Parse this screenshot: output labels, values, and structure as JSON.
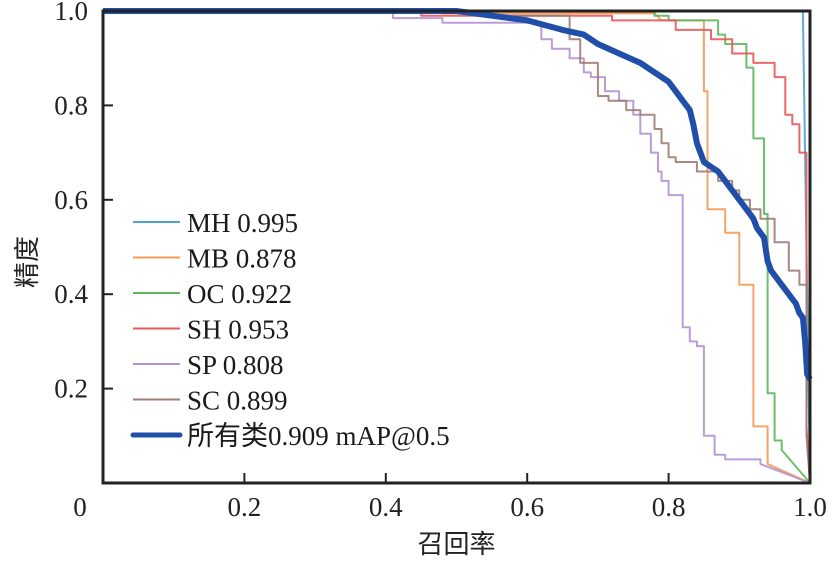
{
  "chart_data": {
    "type": "line",
    "title": "",
    "xlabel": "召回率",
    "ylabel": "精度",
    "xlim": [
      0,
      1.0
    ],
    "ylim": [
      0,
      1.0
    ],
    "grid": false,
    "legend_position": "bottom-left",
    "x_ticks": [
      {
        "value": 0,
        "label": "0"
      },
      {
        "value": 0.2,
        "label": "0.2"
      },
      {
        "value": 0.4,
        "label": "0.4"
      },
      {
        "value": 0.6,
        "label": "0.6"
      },
      {
        "value": 0.8,
        "label": "0.8"
      },
      {
        "value": 1.0,
        "label": "1.0"
      }
    ],
    "y_ticks": [
      {
        "value": 0.2,
        "label": "0.2"
      },
      {
        "value": 0.4,
        "label": "0.4"
      },
      {
        "value": 0.6,
        "label": "0.6"
      },
      {
        "value": 0.8,
        "label": "0.8"
      },
      {
        "value": 1.0,
        "label": "1.0"
      }
    ],
    "series": [
      {
        "name": "MH",
        "legend_label": "MH 0.995",
        "ap": 0.995,
        "color": "#4fa3d6",
        "bold": false,
        "points": [
          [
            0,
            1.0
          ],
          [
            0.99,
            1.0
          ],
          [
            1.0,
            0.0
          ]
        ]
      },
      {
        "name": "MB",
        "legend_label": "MB 0.878",
        "ap": 0.878,
        "color": "#f39a56",
        "bold": false,
        "points": [
          [
            0,
            1.0
          ],
          [
            0.48,
            1.0
          ],
          [
            0.48,
            0.995
          ],
          [
            0.78,
            0.995
          ],
          [
            0.79,
            0.98
          ],
          [
            0.85,
            0.98
          ],
          [
            0.85,
            0.83
          ],
          [
            0.855,
            0.83
          ],
          [
            0.855,
            0.58
          ],
          [
            0.88,
            0.58
          ],
          [
            0.88,
            0.53
          ],
          [
            0.9,
            0.53
          ],
          [
            0.9,
            0.42
          ],
          [
            0.92,
            0.42
          ],
          [
            0.92,
            0.12
          ],
          [
            0.94,
            0.12
          ],
          [
            0.94,
            0.04
          ],
          [
            1.0,
            0.0
          ]
        ]
      },
      {
        "name": "OC",
        "legend_label": "OC 0.922",
        "ap": 0.922,
        "color": "#5cb85c",
        "bold": false,
        "points": [
          [
            0,
            1.0
          ],
          [
            0.78,
            1.0
          ],
          [
            0.78,
            0.99
          ],
          [
            0.8,
            0.99
          ],
          [
            0.8,
            0.98
          ],
          [
            0.87,
            0.98
          ],
          [
            0.87,
            0.95
          ],
          [
            0.88,
            0.95
          ],
          [
            0.88,
            0.93
          ],
          [
            0.91,
            0.93
          ],
          [
            0.91,
            0.88
          ],
          [
            0.92,
            0.88
          ],
          [
            0.92,
            0.73
          ],
          [
            0.935,
            0.73
          ],
          [
            0.935,
            0.57
          ],
          [
            0.94,
            0.57
          ],
          [
            0.94,
            0.19
          ],
          [
            0.95,
            0.19
          ],
          [
            0.95,
            0.09
          ],
          [
            0.96,
            0.09
          ],
          [
            0.96,
            0.07
          ],
          [
            1.0,
            0.0
          ]
        ]
      },
      {
        "name": "SH",
        "legend_label": "SH 0.953",
        "ap": 0.953,
        "color": "#e8585a",
        "bold": false,
        "points": [
          [
            0,
            1.0
          ],
          [
            0.45,
            1.0
          ],
          [
            0.45,
            0.99
          ],
          [
            0.72,
            0.99
          ],
          [
            0.72,
            0.98
          ],
          [
            0.81,
            0.98
          ],
          [
            0.81,
            0.96
          ],
          [
            0.86,
            0.96
          ],
          [
            0.86,
            0.94
          ],
          [
            0.89,
            0.94
          ],
          [
            0.89,
            0.91
          ],
          [
            0.92,
            0.91
          ],
          [
            0.92,
            0.89
          ],
          [
            0.95,
            0.89
          ],
          [
            0.95,
            0.86
          ],
          [
            0.965,
            0.86
          ],
          [
            0.965,
            0.78
          ],
          [
            0.975,
            0.78
          ],
          [
            0.975,
            0.76
          ],
          [
            0.985,
            0.76
          ],
          [
            0.985,
            0.7
          ],
          [
            0.995,
            0.7
          ],
          [
            0.995,
            0.12
          ],
          [
            1.0,
            0.0
          ]
        ]
      },
      {
        "name": "SP",
        "legend_label": "SP 0.808",
        "ap": 0.808,
        "color": "#b292d4",
        "bold": false,
        "points": [
          [
            0,
            1.0
          ],
          [
            0.41,
            1.0
          ],
          [
            0.41,
            0.985
          ],
          [
            0.48,
            0.985
          ],
          [
            0.48,
            0.975
          ],
          [
            0.62,
            0.975
          ],
          [
            0.62,
            0.94
          ],
          [
            0.635,
            0.94
          ],
          [
            0.635,
            0.92
          ],
          [
            0.66,
            0.92
          ],
          [
            0.66,
            0.9
          ],
          [
            0.68,
            0.9
          ],
          [
            0.68,
            0.87
          ],
          [
            0.69,
            0.87
          ],
          [
            0.69,
            0.86
          ],
          [
            0.71,
            0.86
          ],
          [
            0.71,
            0.83
          ],
          [
            0.73,
            0.83
          ],
          [
            0.73,
            0.81
          ],
          [
            0.75,
            0.81
          ],
          [
            0.75,
            0.78
          ],
          [
            0.76,
            0.78
          ],
          [
            0.76,
            0.74
          ],
          [
            0.775,
            0.74
          ],
          [
            0.775,
            0.7
          ],
          [
            0.785,
            0.7
          ],
          [
            0.785,
            0.66
          ],
          [
            0.79,
            0.66
          ],
          [
            0.79,
            0.64
          ],
          [
            0.8,
            0.64
          ],
          [
            0.8,
            0.61
          ],
          [
            0.82,
            0.61
          ],
          [
            0.82,
            0.33
          ],
          [
            0.83,
            0.33
          ],
          [
            0.83,
            0.3
          ],
          [
            0.84,
            0.3
          ],
          [
            0.84,
            0.29
          ],
          [
            0.85,
            0.29
          ],
          [
            0.85,
            0.1
          ],
          [
            0.865,
            0.1
          ],
          [
            0.865,
            0.06
          ],
          [
            0.88,
            0.06
          ],
          [
            0.88,
            0.05
          ],
          [
            0.93,
            0.05
          ],
          [
            0.93,
            0.04
          ],
          [
            1.0,
            0.0
          ]
        ]
      },
      {
        "name": "SC",
        "legend_label": "SC 0.899",
        "ap": 0.899,
        "color": "#a07c76",
        "bold": false,
        "points": [
          [
            0,
            1.0
          ],
          [
            0.55,
            1.0
          ],
          [
            0.55,
            0.99
          ],
          [
            0.66,
            0.99
          ],
          [
            0.66,
            0.94
          ],
          [
            0.675,
            0.94
          ],
          [
            0.675,
            0.89
          ],
          [
            0.7,
            0.89
          ],
          [
            0.7,
            0.82
          ],
          [
            0.715,
            0.82
          ],
          [
            0.715,
            0.81
          ],
          [
            0.74,
            0.81
          ],
          [
            0.74,
            0.79
          ],
          [
            0.76,
            0.79
          ],
          [
            0.76,
            0.78
          ],
          [
            0.78,
            0.78
          ],
          [
            0.78,
            0.75
          ],
          [
            0.79,
            0.75
          ],
          [
            0.79,
            0.72
          ],
          [
            0.8,
            0.72
          ],
          [
            0.8,
            0.69
          ],
          [
            0.81,
            0.69
          ],
          [
            0.81,
            0.68
          ],
          [
            0.84,
            0.68
          ],
          [
            0.84,
            0.66
          ],
          [
            0.87,
            0.66
          ],
          [
            0.87,
            0.64
          ],
          [
            0.89,
            0.64
          ],
          [
            0.89,
            0.62
          ],
          [
            0.9,
            0.62
          ],
          [
            0.9,
            0.6
          ],
          [
            0.915,
            0.6
          ],
          [
            0.915,
            0.58
          ],
          [
            0.93,
            0.58
          ],
          [
            0.93,
            0.56
          ],
          [
            0.95,
            0.56
          ],
          [
            0.95,
            0.51
          ],
          [
            0.97,
            0.51
          ],
          [
            0.97,
            0.45
          ],
          [
            0.985,
            0.45
          ],
          [
            0.985,
            0.42
          ],
          [
            0.995,
            0.42
          ],
          [
            0.995,
            0.1
          ],
          [
            1.0,
            0.0
          ]
        ]
      },
      {
        "name": "所有类",
        "legend_label": "所有类0.909 mAP@0.5",
        "ap": 0.909,
        "color": "#1f4fa8",
        "bold": true,
        "points": [
          [
            0,
            1.0
          ],
          [
            0.5,
            1.0
          ],
          [
            0.55,
            0.99
          ],
          [
            0.6,
            0.98
          ],
          [
            0.65,
            0.96
          ],
          [
            0.68,
            0.95
          ],
          [
            0.7,
            0.93
          ],
          [
            0.73,
            0.91
          ],
          [
            0.76,
            0.89
          ],
          [
            0.78,
            0.87
          ],
          [
            0.8,
            0.85
          ],
          [
            0.81,
            0.83
          ],
          [
            0.82,
            0.81
          ],
          [
            0.83,
            0.79
          ],
          [
            0.835,
            0.76
          ],
          [
            0.84,
            0.72
          ],
          [
            0.845,
            0.7
          ],
          [
            0.85,
            0.68
          ],
          [
            0.86,
            0.67
          ],
          [
            0.87,
            0.66
          ],
          [
            0.88,
            0.64
          ],
          [
            0.89,
            0.62
          ],
          [
            0.9,
            0.6
          ],
          [
            0.91,
            0.58
          ],
          [
            0.92,
            0.56
          ],
          [
            0.925,
            0.54
          ],
          [
            0.935,
            0.52
          ],
          [
            0.94,
            0.47
          ],
          [
            0.945,
            0.45
          ],
          [
            0.95,
            0.44
          ],
          [
            0.96,
            0.42
          ],
          [
            0.97,
            0.4
          ],
          [
            0.975,
            0.39
          ],
          [
            0.98,
            0.38
          ],
          [
            0.985,
            0.36
          ],
          [
            0.99,
            0.35
          ],
          [
            0.993,
            0.3
          ],
          [
            0.996,
            0.23
          ],
          [
            1.0,
            0.22
          ]
        ]
      }
    ]
  }
}
